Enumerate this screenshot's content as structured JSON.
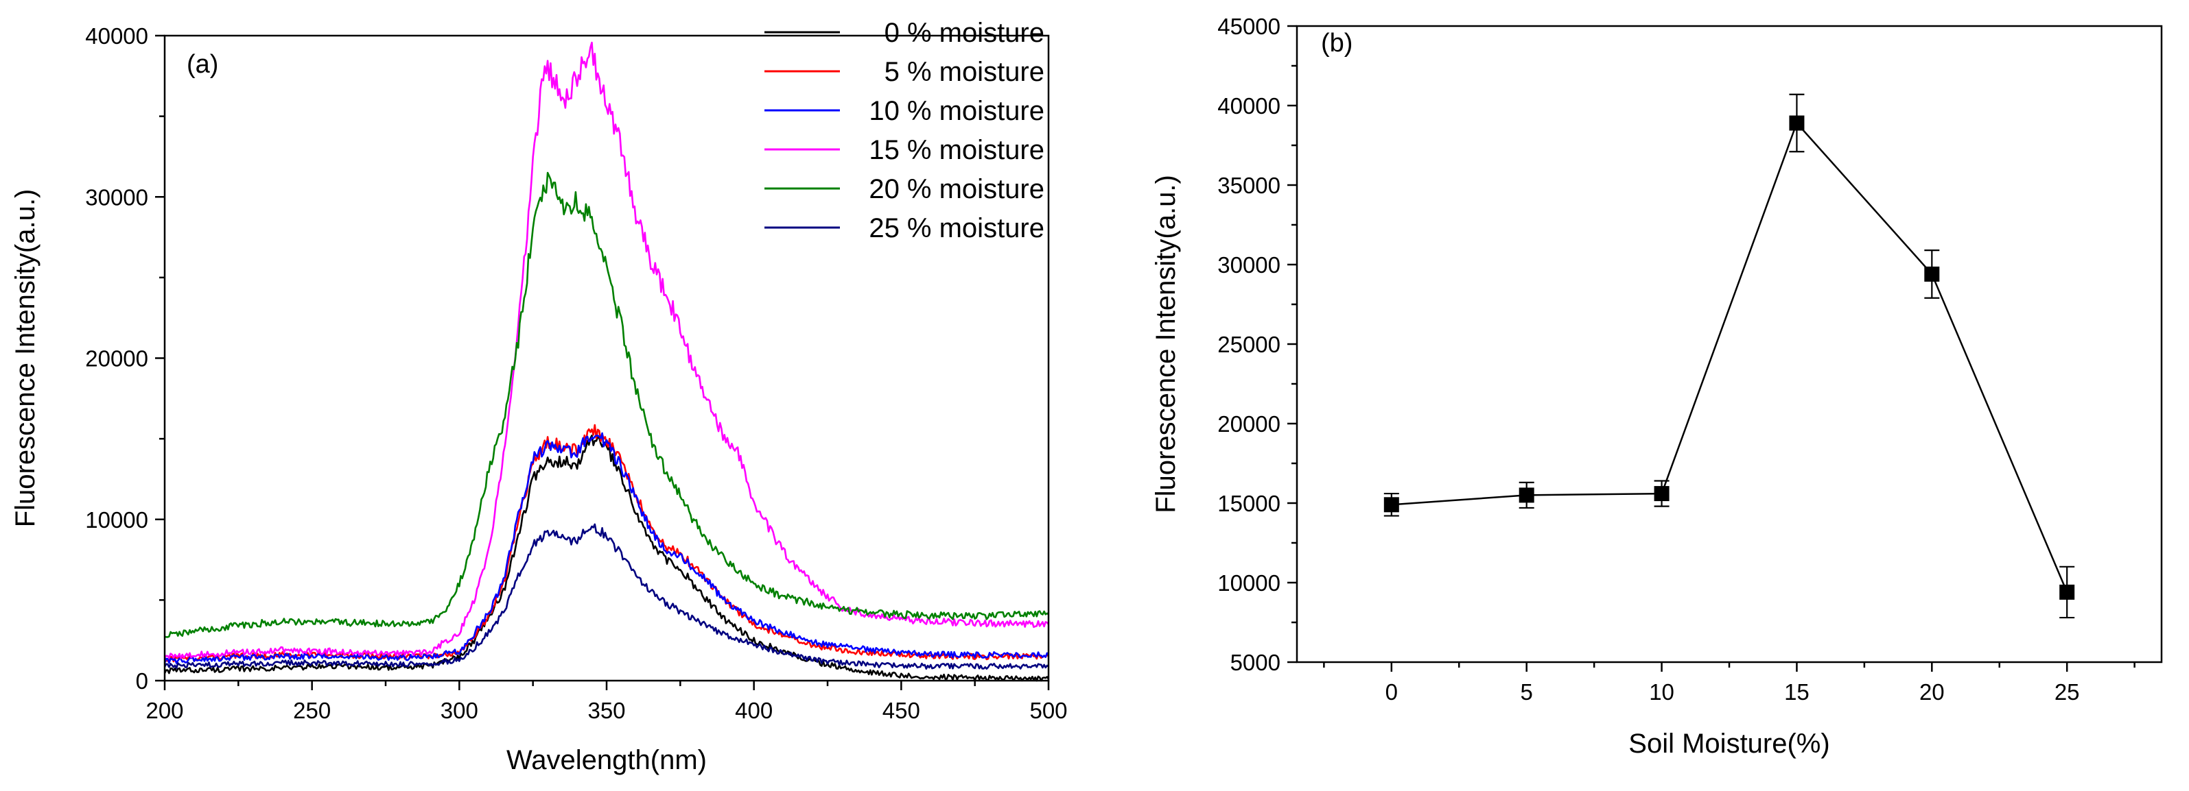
{
  "chart_data": [
    {
      "type": "line",
      "panel_label": "(a)",
      "xlabel": "Wavelength(nm)",
      "ylabel": "Fluorescence Intensity(a.u.)",
      "xlim": [
        200,
        500
      ],
      "ylim": [
        0,
        40000
      ],
      "xticks": [
        200,
        250,
        300,
        350,
        400,
        450,
        500
      ],
      "yticks": [
        0,
        10000,
        20000,
        30000,
        40000
      ],
      "legend_position": "top-right",
      "series": [
        {
          "name": "0 % moisture",
          "color": "#000000",
          "points": [
            [
              200,
              600
            ],
            [
              220,
              700
            ],
            [
              240,
              800
            ],
            [
              260,
              900
            ],
            [
              280,
              800
            ],
            [
              290,
              900
            ],
            [
              300,
              1500
            ],
            [
              305,
              2500
            ],
            [
              310,
              4000
            ],
            [
              315,
              5500
            ],
            [
              320,
              9000
            ],
            [
              325,
              12500
            ],
            [
              330,
              13500
            ],
            [
              335,
              13600
            ],
            [
              340,
              13500
            ],
            [
              345,
              15000
            ],
            [
              350,
              14500
            ],
            [
              355,
              12500
            ],
            [
              360,
              10500
            ],
            [
              365,
              8500
            ],
            [
              370,
              7500
            ],
            [
              375,
              7000
            ],
            [
              380,
              5800
            ],
            [
              385,
              4800
            ],
            [
              390,
              3800
            ],
            [
              400,
              2500
            ],
            [
              410,
              1800
            ],
            [
              420,
              1200
            ],
            [
              430,
              800
            ],
            [
              440,
              500
            ],
            [
              450,
              300
            ],
            [
              470,
              200
            ],
            [
              500,
              100
            ]
          ]
        },
        {
          "name": "5 % moisture",
          "color": "#ff0000",
          "points": [
            [
              200,
              1300
            ],
            [
              220,
              1500
            ],
            [
              240,
              1600
            ],
            [
              260,
              1600
            ],
            [
              280,
              1500
            ],
            [
              290,
              1500
            ],
            [
              300,
              1800
            ],
            [
              305,
              2800
            ],
            [
              310,
              4000
            ],
            [
              315,
              6000
            ],
            [
              320,
              10000
            ],
            [
              325,
              13500
            ],
            [
              330,
              14800
            ],
            [
              335,
              14500
            ],
            [
              340,
              14300
            ],
            [
              345,
              15600
            ],
            [
              350,
              15000
            ],
            [
              355,
              13500
            ],
            [
              360,
              11500
            ],
            [
              365,
              9500
            ],
            [
              370,
              8200
            ],
            [
              375,
              7900
            ],
            [
              380,
              7000
            ],
            [
              385,
              6000
            ],
            [
              390,
              5000
            ],
            [
              400,
              3500
            ],
            [
              410,
              2800
            ],
            [
              420,
              2200
            ],
            [
              430,
              1900
            ],
            [
              440,
              1700
            ],
            [
              450,
              1600
            ],
            [
              470,
              1500
            ],
            [
              500,
              1500
            ]
          ]
        },
        {
          "name": "10 % moisture",
          "color": "#0000ff",
          "points": [
            [
              200,
              1200
            ],
            [
              220,
              1400
            ],
            [
              240,
              1500
            ],
            [
              260,
              1500
            ],
            [
              280,
              1400
            ],
            [
              290,
              1500
            ],
            [
              300,
              1800
            ],
            [
              305,
              2900
            ],
            [
              310,
              4200
            ],
            [
              315,
              6200
            ],
            [
              320,
              10200
            ],
            [
              325,
              13800
            ],
            [
              330,
              14600
            ],
            [
              335,
              14300
            ],
            [
              340,
              14200
            ],
            [
              345,
              15300
            ],
            [
              350,
              14800
            ],
            [
              355,
              13200
            ],
            [
              360,
              11300
            ],
            [
              365,
              9300
            ],
            [
              370,
              8000
            ],
            [
              375,
              7700
            ],
            [
              380,
              6900
            ],
            [
              385,
              6000
            ],
            [
              390,
              5000
            ],
            [
              400,
              3700
            ],
            [
              410,
              3000
            ],
            [
              420,
              2400
            ],
            [
              430,
              2100
            ],
            [
              440,
              1900
            ],
            [
              450,
              1700
            ],
            [
              470,
              1600
            ],
            [
              500,
              1600
            ]
          ]
        },
        {
          "name": "15 % moisture",
          "color": "#ff00ff",
          "points": [
            [
              200,
              1500
            ],
            [
              220,
              1700
            ],
            [
              240,
              1900
            ],
            [
              260,
              1800
            ],
            [
              280,
              1700
            ],
            [
              290,
              1800
            ],
            [
              300,
              3000
            ],
            [
              305,
              5000
            ],
            [
              310,
              8000
            ],
            [
              315,
              14000
            ],
            [
              320,
              22000
            ],
            [
              325,
              32000
            ],
            [
              328,
              37000
            ],
            [
              330,
              38000
            ],
            [
              335,
              36000
            ],
            [
              340,
              37500
            ],
            [
              345,
              38800
            ],
            [
              350,
              36000
            ],
            [
              355,
              33000
            ],
            [
              360,
              29000
            ],
            [
              365,
              26000
            ],
            [
              370,
              24000
            ],
            [
              375,
              22000
            ],
            [
              380,
              19000
            ],
            [
              385,
              17000
            ],
            [
              390,
              15000
            ],
            [
              395,
              14000
            ],
            [
              400,
              11000
            ],
            [
              410,
              8000
            ],
            [
              420,
              6000
            ],
            [
              430,
              4500
            ],
            [
              440,
              4000
            ],
            [
              450,
              3800
            ],
            [
              470,
              3600
            ],
            [
              500,
              3500
            ]
          ]
        },
        {
          "name": "20 % moisture",
          "color": "#008000",
          "points": [
            [
              200,
              2800
            ],
            [
              220,
              3300
            ],
            [
              240,
              3700
            ],
            [
              260,
              3600
            ],
            [
              280,
              3500
            ],
            [
              290,
              3600
            ],
            [
              295,
              4200
            ],
            [
              300,
              6000
            ],
            [
              305,
              9000
            ],
            [
              310,
              13000
            ],
            [
              315,
              16000
            ],
            [
              320,
              21000
            ],
            [
              325,
              28000
            ],
            [
              330,
              31200
            ],
            [
              335,
              29500
            ],
            [
              340,
              29700
            ],
            [
              345,
              28500
            ],
            [
              350,
              25500
            ],
            [
              355,
              22000
            ],
            [
              360,
              18000
            ],
            [
              365,
              15000
            ],
            [
              370,
              13000
            ],
            [
              375,
              11500
            ],
            [
              380,
              9800
            ],
            [
              385,
              8500
            ],
            [
              390,
              7500
            ],
            [
              400,
              6000
            ],
            [
              410,
              5200
            ],
            [
              420,
              4800
            ],
            [
              430,
              4400
            ],
            [
              440,
              4200
            ],
            [
              450,
              4100
            ],
            [
              470,
              4000
            ],
            [
              500,
              4100
            ]
          ]
        },
        {
          "name": "25 % moisture",
          "color": "#000080",
          "points": [
            [
              200,
              900
            ],
            [
              220,
              1000
            ],
            [
              240,
              1100
            ],
            [
              260,
              1100
            ],
            [
              280,
              1000
            ],
            [
              290,
              1000
            ],
            [
              300,
              1300
            ],
            [
              305,
              2000
            ],
            [
              310,
              3000
            ],
            [
              315,
              4200
            ],
            [
              320,
              6500
            ],
            [
              325,
              8500
            ],
            [
              330,
              9200
            ],
            [
              335,
              8800
            ],
            [
              340,
              8700
            ],
            [
              345,
              9600
            ],
            [
              350,
              9000
            ],
            [
              355,
              7800
            ],
            [
              360,
              6500
            ],
            [
              365,
              5500
            ],
            [
              370,
              4800
            ],
            [
              375,
              4300
            ],
            [
              380,
              3800
            ],
            [
              385,
              3300
            ],
            [
              390,
              2900
            ],
            [
              400,
              2200
            ],
            [
              410,
              1700
            ],
            [
              420,
              1300
            ],
            [
              430,
              1100
            ],
            [
              440,
              1000
            ],
            [
              450,
              900
            ],
            [
              470,
              900
            ],
            [
              500,
              900
            ]
          ]
        }
      ]
    },
    {
      "type": "line",
      "panel_label": "(b)",
      "xlabel": "Soil Moisture(%)",
      "ylabel": "Fluorescence Intensity(a.u.)",
      "xlim": [
        -3.5,
        28.5
      ],
      "ylim": [
        5000,
        45000
      ],
      "xticks": [
        0,
        5,
        10,
        15,
        20,
        25
      ],
      "yticks": [
        5000,
        10000,
        15000,
        20000,
        25000,
        30000,
        35000,
        40000,
        45000
      ],
      "x": [
        0,
        5,
        10,
        15,
        20,
        25
      ],
      "values": [
        14900,
        15500,
        15600,
        38900,
        29400,
        9400
      ],
      "error": [
        700,
        800,
        800,
        1800,
        1500,
        1600
      ],
      "marker": "filled square",
      "color": "#000000"
    }
  ]
}
